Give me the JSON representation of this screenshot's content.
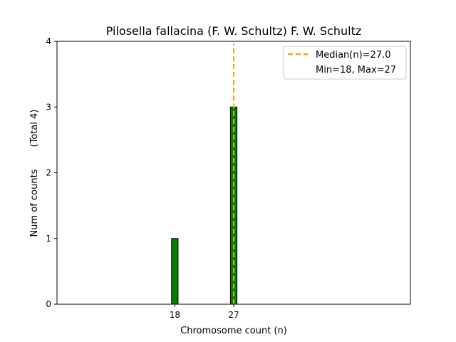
{
  "chart_data": {
    "type": "bar",
    "title": "Pilosella fallacina (F. W. Schultz) F. W. Schultz",
    "xlabel": "Chromosome count (n)",
    "ylabel": "Num of counts",
    "ylabel_total": "(Total 4)",
    "x_ticks": [
      18,
      27
    ],
    "y_ticks": [
      0,
      1,
      2,
      3,
      4
    ],
    "xlim": [
      0,
      54
    ],
    "ylim": [
      0,
      4
    ],
    "bars": [
      {
        "x": 18,
        "value": 1
      },
      {
        "x": 27,
        "value": 3
      }
    ],
    "bar_color": "#008000",
    "median": 27.0,
    "median_color": "#FFA500",
    "legend": {
      "placement": "top-right",
      "median_label": "Median(n)=27.0",
      "range_label": "Min=18, Max=27"
    }
  }
}
